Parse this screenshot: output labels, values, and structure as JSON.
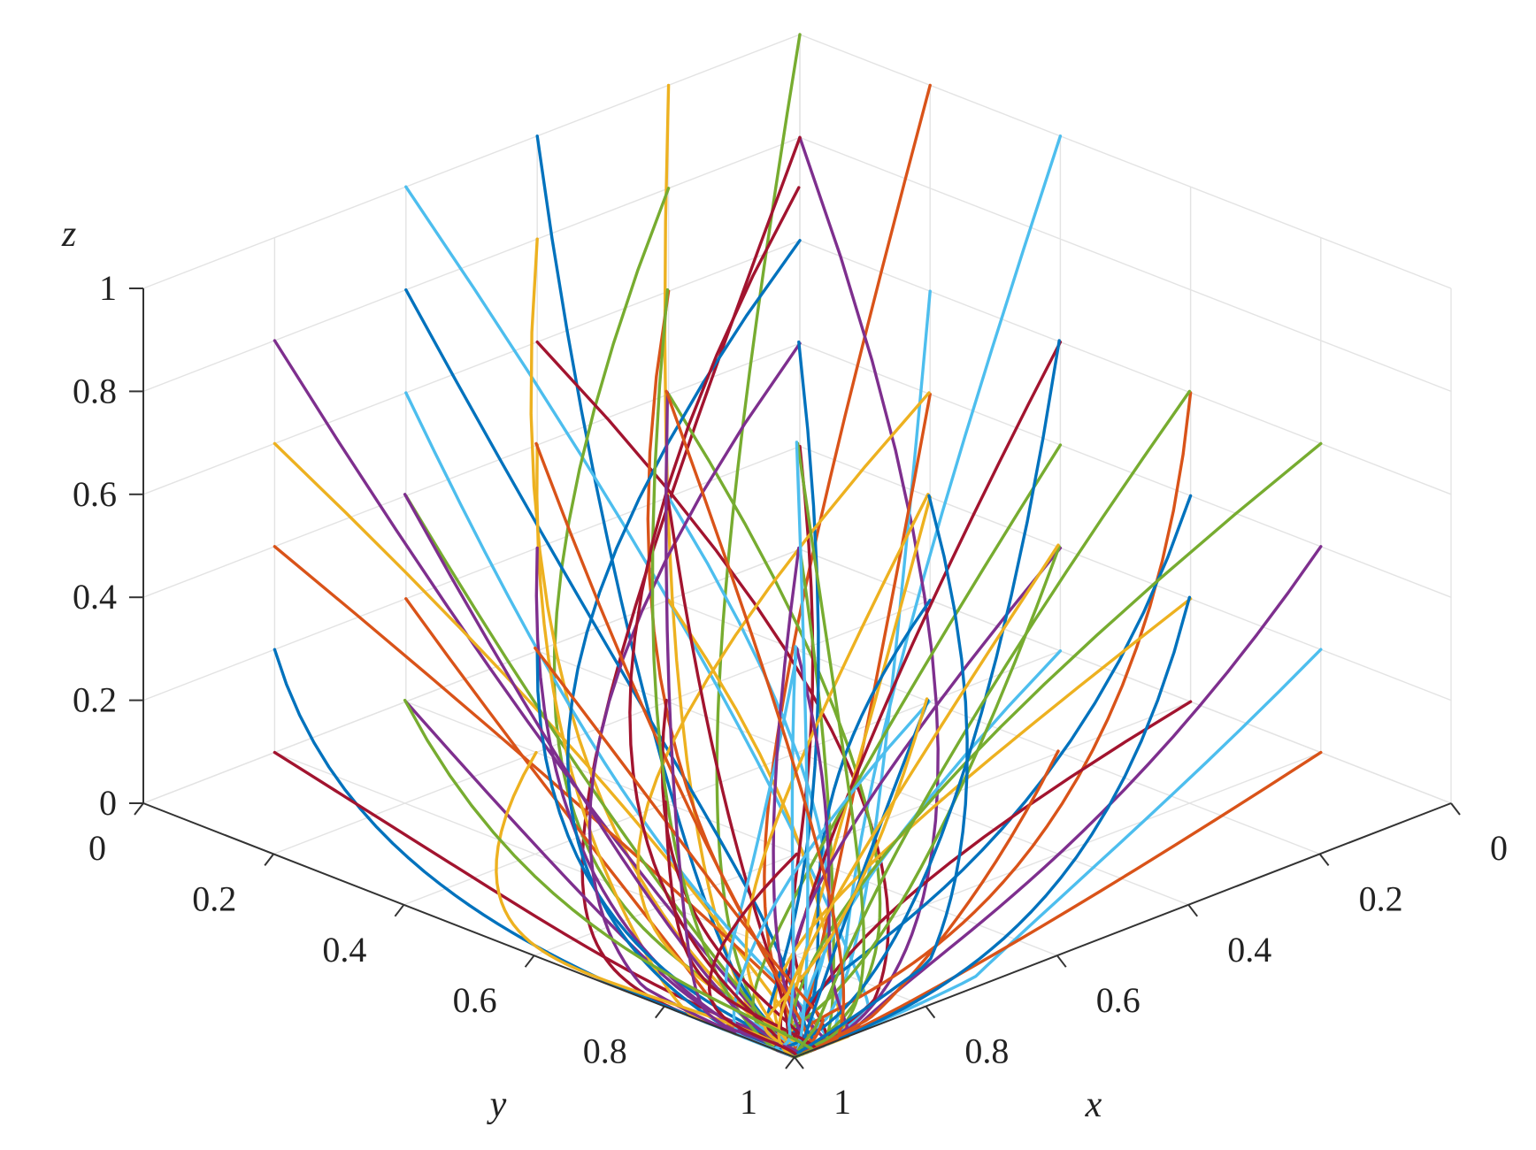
{
  "chart_data": {
    "type": "line",
    "projection": "3d",
    "xlabel": "x",
    "ylabel": "y",
    "zlabel": "z",
    "xlim": [
      0,
      1
    ],
    "ylim": [
      0,
      1
    ],
    "zlim": [
      0,
      1
    ],
    "grid": true,
    "x_ticks": [
      "0",
      "0.2",
      "0.4",
      "0.6",
      "0.8",
      "1"
    ],
    "y_ticks": [
      "0",
      "0.2",
      "0.4",
      "0.6",
      "0.8",
      "1"
    ],
    "z_ticks": [
      "0",
      "0.2",
      "0.4",
      "0.6",
      "0.8",
      "1"
    ],
    "palette": [
      "#0072BD",
      "#D95319",
      "#EDB120",
      "#7E2F8E",
      "#77AC30",
      "#4DBEEE",
      "#A2142F"
    ],
    "convergence_point": [
      1,
      1,
      0
    ],
    "series": [
      {
        "color": "#77AC30",
        "start": [
          0.0,
          0.0,
          1.0
        ]
      },
      {
        "color": "#D95319",
        "start": [
          0.0,
          0.2,
          1.0
        ]
      },
      {
        "color": "#4DBEEE",
        "start": [
          0.0,
          0.4,
          1.0
        ]
      },
      {
        "color": "#EDB120",
        "start": [
          0.2,
          0.0,
          1.0
        ]
      },
      {
        "color": "#0072BD",
        "start": [
          0.4,
          0.0,
          1.0
        ]
      },
      {
        "color": "#4DBEEE",
        "start": [
          0.6,
          0.0,
          1.0
        ]
      },
      {
        "color": "#7E2F8E",
        "start": [
          0.0,
          0.0,
          0.8
        ]
      },
      {
        "color": "#A2142F",
        "start": [
          0.0,
          0.0,
          0.8
        ]
      },
      {
        "color": "#77AC30",
        "start": [
          0.2,
          0.0,
          0.8
        ]
      },
      {
        "color": "#EDB120",
        "start": [
          0.4,
          0.0,
          0.8
        ]
      },
      {
        "color": "#0072BD",
        "start": [
          0.6,
          0.0,
          0.8
        ]
      },
      {
        "color": "#7E2F8E",
        "start": [
          0.8,
          0.0,
          0.8
        ]
      },
      {
        "color": "#EDB120",
        "start": [
          0.8,
          0.0,
          0.6
        ]
      },
      {
        "color": "#D95319",
        "start": [
          0.8,
          0.0,
          0.4
        ]
      },
      {
        "color": "#0072BD",
        "start": [
          0.8,
          0.0,
          0.2
        ]
      },
      {
        "color": "#A2142F",
        "start": [
          0.8,
          0.0,
          0.0
        ]
      },
      {
        "color": "#4DBEEE",
        "start": [
          0.6,
          0.0,
          0.6
        ]
      },
      {
        "color": "#77AC30",
        "start": [
          0.6,
          0.0,
          0.4
        ]
      },
      {
        "color": "#D95319",
        "start": [
          0.6,
          0.0,
          0.2
        ]
      },
      {
        "color": "#7E2F8E",
        "start": [
          0.6,
          0.0,
          0.0
        ]
      },
      {
        "color": "#A2142F",
        "start": [
          0.4,
          0.0,
          0.6
        ]
      },
      {
        "color": "#EDB120",
        "start": [
          0.4,
          0.0,
          0.4
        ]
      },
      {
        "color": "#7E2F8E",
        "start": [
          0.4,
          0.0,
          0.2
        ]
      },
      {
        "color": "#0072BD",
        "start": [
          0.4,
          0.0,
          0.0
        ]
      },
      {
        "color": "#D95319",
        "start": [
          0.2,
          0.0,
          0.6
        ]
      },
      {
        "color": "#77AC30",
        "start": [
          0.2,
          0.0,
          0.4
        ]
      },
      {
        "color": "#4DBEEE",
        "start": [
          0.2,
          0.0,
          0.2
        ]
      },
      {
        "color": "#EDB120",
        "start": [
          0.2,
          0.0,
          0.0
        ]
      },
      {
        "color": "#0072BD",
        "start": [
          0.0,
          0.0,
          0.6
        ]
      },
      {
        "color": "#7E2F8E",
        "start": [
          0.0,
          0.0,
          0.4
        ]
      },
      {
        "color": "#A2142F",
        "start": [
          0.0,
          0.0,
          0.2
        ]
      },
      {
        "color": "#77AC30",
        "start": [
          0.0,
          0.0,
          0.0
        ]
      },
      {
        "color": "#4DBEEE",
        "start": [
          0.0,
          0.2,
          0.6
        ]
      },
      {
        "color": "#D95319",
        "start": [
          0.0,
          0.2,
          0.4
        ]
      },
      {
        "color": "#EDB120",
        "start": [
          0.0,
          0.2,
          0.2
        ]
      },
      {
        "color": "#0072BD",
        "start": [
          0.0,
          0.2,
          0.0
        ]
      },
      {
        "color": "#A2142F",
        "start": [
          0.0,
          0.4,
          0.6
        ]
      },
      {
        "color": "#77AC30",
        "start": [
          0.0,
          0.4,
          0.4
        ]
      },
      {
        "color": "#7E2F8E",
        "start": [
          0.0,
          0.4,
          0.2
        ]
      },
      {
        "color": "#4DBEEE",
        "start": [
          0.0,
          0.4,
          0.0
        ]
      },
      {
        "color": "#D95319",
        "start": [
          0.0,
          0.6,
          0.6
        ]
      },
      {
        "color": "#0072BD",
        "start": [
          0.0,
          0.6,
          0.4
        ]
      },
      {
        "color": "#EDB120",
        "start": [
          0.0,
          0.6,
          0.2
        ]
      },
      {
        "color": "#A2142F",
        "start": [
          0.0,
          0.6,
          0.0
        ]
      },
      {
        "color": "#77AC30",
        "start": [
          0.0,
          0.8,
          0.6
        ]
      },
      {
        "color": "#7E2F8E",
        "start": [
          0.0,
          0.8,
          0.4
        ]
      },
      {
        "color": "#4DBEEE",
        "start": [
          0.0,
          0.8,
          0.2
        ]
      },
      {
        "color": "#D95319",
        "start": [
          0.0,
          0.8,
          0.0
        ]
      },
      {
        "color": "#0072BD",
        "start": [
          0.2,
          0.2,
          0.6
        ]
      },
      {
        "color": "#EDB120",
        "start": [
          0.2,
          0.4,
          0.6
        ]
      },
      {
        "color": "#A2142F",
        "start": [
          0.4,
          0.2,
          0.4
        ]
      },
      {
        "color": "#77AC30",
        "start": [
          0.2,
          0.6,
          0.4
        ]
      },
      {
        "color": "#4DBEEE",
        "start": [
          0.4,
          0.4,
          0.2
        ]
      },
      {
        "color": "#7E2F8E",
        "start": [
          0.2,
          0.2,
          0.2
        ]
      },
      {
        "color": "#D95319",
        "start": [
          0.6,
          0.2,
          0.6
        ]
      },
      {
        "color": "#0072BD",
        "start": [
          0.2,
          0.8,
          0.4
        ]
      },
      {
        "color": "#EDB120",
        "start": [
          0.4,
          0.6,
          0.6
        ]
      },
      {
        "color": "#A2142F",
        "start": [
          0.6,
          0.4,
          0.2
        ]
      },
      {
        "color": "#77AC30",
        "start": [
          0.4,
          0.2,
          0.8
        ]
      },
      {
        "color": "#4DBEEE",
        "start": [
          0.2,
          0.4,
          0.0
        ]
      },
      {
        "color": "#7E2F8E",
        "start": [
          0.6,
          0.6,
          0.4
        ]
      },
      {
        "color": "#D95319",
        "start": [
          0.4,
          0.8,
          0.2
        ]
      },
      {
        "color": "#0072BD",
        "start": [
          0.2,
          0.6,
          0.8
        ]
      },
      {
        "color": "#EDB120",
        "start": [
          0.6,
          0.2,
          0.0
        ]
      },
      {
        "color": "#A2142F",
        "start": [
          0.2,
          0.2,
          0.9
        ]
      },
      {
        "color": "#77AC30",
        "start": [
          0.4,
          0.4,
          0.6
        ]
      },
      {
        "color": "#4DBEEE",
        "start": [
          0.6,
          0.6,
          0.8
        ]
      },
      {
        "color": "#7E2F8E",
        "start": [
          0.8,
          0.2,
          0.6
        ]
      },
      {
        "color": "#D95319",
        "start": [
          0.8,
          0.4,
          0.4
        ]
      },
      {
        "color": "#0072BD",
        "start": [
          0.4,
          0.6,
          0.2
        ]
      },
      {
        "color": "#EDB120",
        "start": [
          0.6,
          0.8,
          0.4
        ]
      },
      {
        "color": "#A2142F",
        "start": [
          0.8,
          0.6,
          0.2
        ]
      },
      {
        "color": "#77AC30",
        "start": [
          0.2,
          0.8,
          0.8
        ]
      },
      {
        "color": "#4DBEEE",
        "start": [
          0.8,
          0.8,
          0.6
        ]
      },
      {
        "color": "#7E2F8E",
        "start": [
          0.4,
          0.2,
          0.6
        ]
      },
      {
        "color": "#D95319",
        "start": [
          0.6,
          0.4,
          0.8
        ]
      },
      {
        "color": "#0072BD",
        "start": [
          0.2,
          0.4,
          0.4
        ]
      },
      {
        "color": "#EDB120",
        "start": [
          0.4,
          0.8,
          0.6
        ]
      },
      {
        "color": "#A2142F",
        "start": [
          0.6,
          0.6,
          0.0
        ]
      },
      {
        "color": "#77AC30",
        "start": [
          0.8,
          0.2,
          0.2
        ]
      }
    ]
  }
}
